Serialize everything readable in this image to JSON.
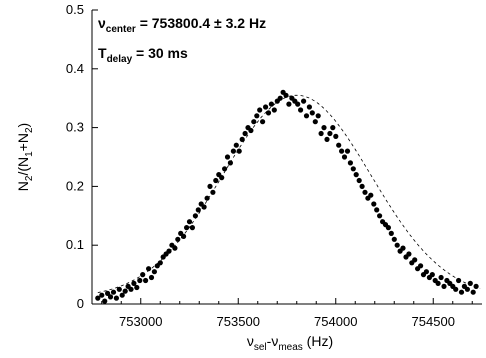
{
  "chart_data": {
    "type": "scatter",
    "xlabel": {
      "base": "ν",
      "sub1": "sel",
      "mid": "-ν",
      "sub2": "meas",
      "tail": " (Hz)"
    },
    "ylabel": {
      "part1": "N",
      "sub1": "2",
      "part2": "/(N",
      "sub2": "1",
      "part3": "+N",
      "sub3": "2",
      "part4": ")"
    },
    "xlim": [
      752750,
      754750
    ],
    "ylim": [
      0,
      0.5
    ],
    "xticks": [
      "753000",
      "753500",
      "754000",
      "754500"
    ],
    "yticks": [
      "0",
      "0.1",
      "0.2",
      "0.3",
      "0.4",
      "0.5"
    ],
    "annotations": [
      {
        "base": "ν",
        "sub": "center",
        "rest": " = 753800.4 ± 3.2 Hz"
      },
      {
        "base": "T",
        "sub": "delay",
        "rest": " = 30 ms"
      }
    ],
    "fit": {
      "style": "dashed",
      "center": 753800.4,
      "amplitude": 0.345,
      "sigma": 380,
      "offset": 0.01
    },
    "series": [
      {
        "x": [
          752780,
          752800,
          752815,
          752830,
          752845,
          752860,
          752875,
          752890,
          752905,
          752920,
          752935,
          752950,
          752965,
          752980,
          752995,
          753010,
          753025,
          753040,
          753055,
          753070,
          753085,
          753100,
          753115,
          753130,
          753145,
          753160,
          753175,
          753190,
          753205,
          753220,
          753235,
          753250,
          753265,
          753280,
          753295,
          753310,
          753325,
          753340,
          753355,
          753370,
          753385,
          753400,
          753415,
          753430,
          753445,
          753460,
          753475,
          753490,
          753505,
          753520,
          753535,
          753550,
          753565,
          753580,
          753595,
          753610,
          753625,
          753640,
          753655,
          753670,
          753685,
          753700,
          753715,
          753730,
          753745,
          753760,
          753775,
          753790,
          753805,
          753820,
          753835,
          753850,
          753865,
          753880,
          753895,
          753910,
          753925,
          753940,
          753955,
          753970,
          753985,
          754000,
          754015,
          754030,
          754045,
          754060,
          754075,
          754090,
          754105,
          754120,
          754135,
          754150,
          754165,
          754180,
          754195,
          754210,
          754225,
          754240,
          754255,
          754270,
          754285,
          754300,
          754315,
          754330,
          754345,
          754360,
          754375,
          754390,
          754405,
          754420,
          754435,
          754450,
          754465,
          754480,
          754495,
          754510,
          754525,
          754540,
          754555,
          754570,
          754585,
          754600,
          754615,
          754630,
          754645,
          754660,
          754675,
          754690,
          754705,
          754720
        ],
        "y": [
          0.01,
          0.015,
          0.005,
          0.018,
          0.012,
          0.02,
          0.01,
          0.025,
          0.015,
          0.022,
          0.03,
          0.025,
          0.035,
          0.028,
          0.04,
          0.05,
          0.04,
          0.06,
          0.045,
          0.055,
          0.065,
          0.07,
          0.08,
          0.085,
          0.09,
          0.1,
          0.095,
          0.11,
          0.12,
          0.115,
          0.13,
          0.14,
          0.13,
          0.15,
          0.16,
          0.17,
          0.165,
          0.18,
          0.2,
          0.19,
          0.21,
          0.22,
          0.215,
          0.23,
          0.25,
          0.24,
          0.26,
          0.27,
          0.26,
          0.28,
          0.29,
          0.3,
          0.295,
          0.31,
          0.32,
          0.33,
          0.31,
          0.335,
          0.325,
          0.34,
          0.33,
          0.345,
          0.35,
          0.36,
          0.355,
          0.34,
          0.35,
          0.345,
          0.34,
          0.33,
          0.345,
          0.32,
          0.335,
          0.325,
          0.31,
          0.32,
          0.29,
          0.3,
          0.28,
          0.29,
          0.3,
          0.285,
          0.27,
          0.26,
          0.25,
          0.26,
          0.24,
          0.23,
          0.22,
          0.21,
          0.2,
          0.19,
          0.18,
          0.185,
          0.17,
          0.16,
          0.15,
          0.14,
          0.135,
          0.13,
          0.12,
          0.11,
          0.1,
          0.09,
          0.095,
          0.08,
          0.085,
          0.07,
          0.075,
          0.06,
          0.065,
          0.05,
          0.055,
          0.045,
          0.05,
          0.04,
          0.035,
          0.045,
          0.03,
          0.04,
          0.035,
          0.03,
          0.025,
          0.04,
          0.02,
          0.03,
          0.025,
          0.035,
          0.02,
          0.03
        ]
      }
    ]
  }
}
